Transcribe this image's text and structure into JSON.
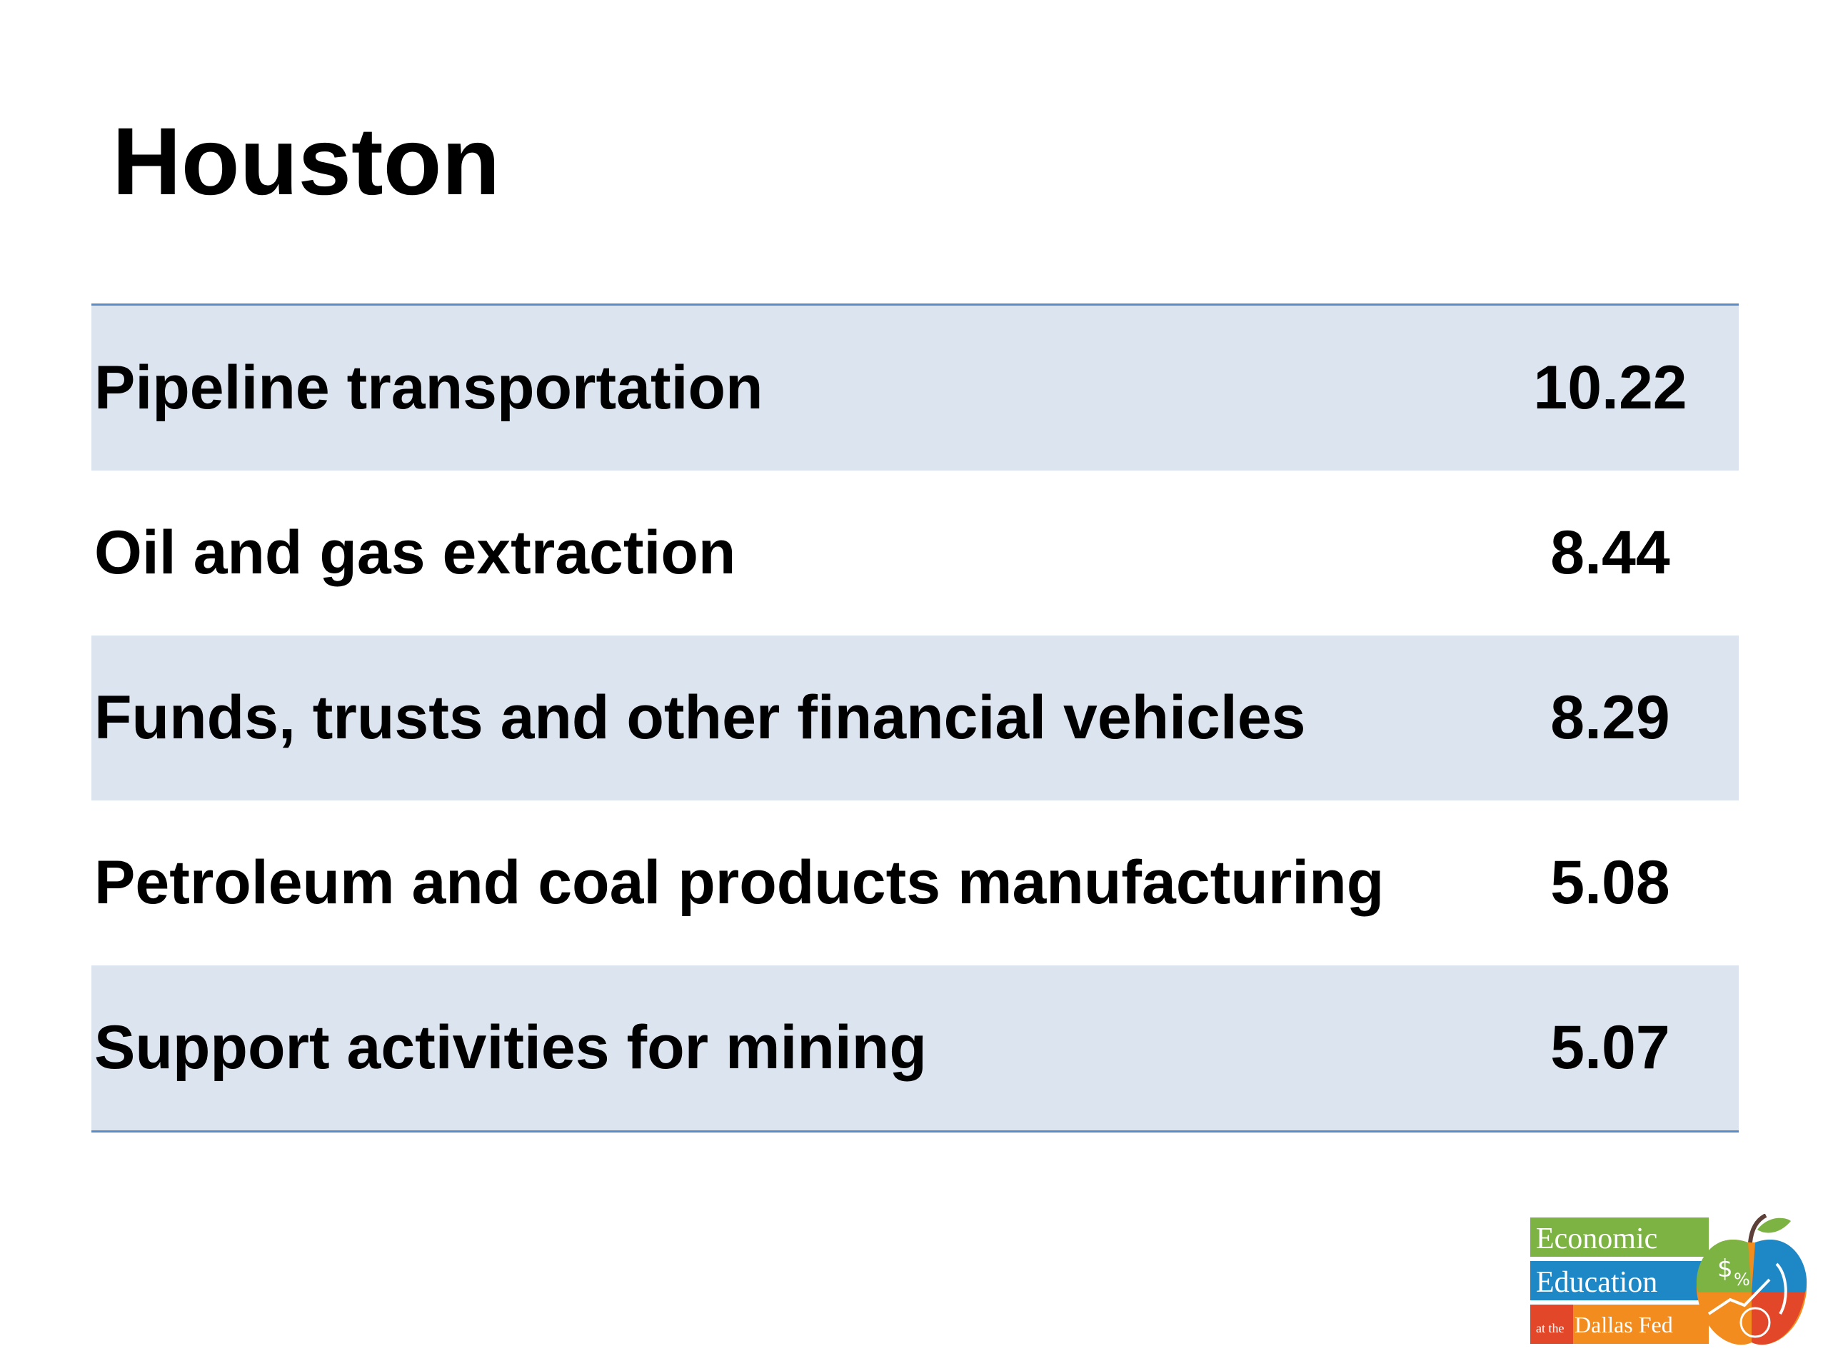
{
  "title": "Houston",
  "table": {
    "rows": [
      {
        "industry": "Pipeline transportation",
        "value": "10.22"
      },
      {
        "industry": "Oil and gas extraction",
        "value": "8.44"
      },
      {
        "industry": "Funds, trusts and other financial vehicles",
        "value": "8.29"
      },
      {
        "industry": "Petroleum and coal products manufacturing",
        "value": "5.08"
      },
      {
        "industry": "Support activities for mining",
        "value": "5.07"
      }
    ]
  },
  "logo": {
    "line1": "Economic",
    "line2": "Education",
    "line3_small": "at the",
    "line3": "Dallas Fed"
  },
  "colors": {
    "row_shade": "#dce4f0",
    "rule": "#5b8ac9",
    "logo_green": "#7cb342",
    "logo_blue": "#1e88c7",
    "logo_orange": "#f28c1e",
    "logo_red": "#e2472a"
  }
}
